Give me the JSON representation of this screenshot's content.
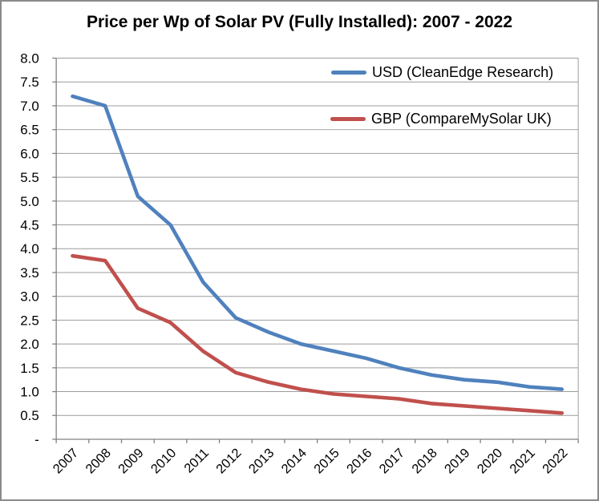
{
  "chart_data": {
    "type": "line",
    "title": "Price per Wp of Solar PV (Fully Installed): 2007 - 2022",
    "categories": [
      "2007",
      "2008",
      "2009",
      "2010",
      "2011",
      "2012",
      "2013",
      "2014",
      "2015",
      "2016",
      "2017",
      "2018",
      "2019",
      "2020",
      "2021",
      "2022"
    ],
    "series": [
      {
        "name": "USD (CleanEdge Research)",
        "key": "usd",
        "color": "#4F81BD",
        "values": [
          7.2,
          7.0,
          5.1,
          4.5,
          3.3,
          2.55,
          2.25,
          2.0,
          1.85,
          1.7,
          1.5,
          1.35,
          1.25,
          1.2,
          1.1,
          1.05
        ]
      },
      {
        "name": "GBP (CompareMySolar UK)",
        "key": "gbp",
        "color": "#C0504D",
        "values": [
          3.85,
          3.75,
          2.75,
          2.45,
          1.85,
          1.4,
          1.2,
          1.05,
          0.95,
          0.9,
          0.85,
          0.75,
          0.7,
          0.65,
          0.6,
          0.55
        ]
      }
    ],
    "xlabel": "",
    "ylabel": "",
    "ylim": [
      0,
      8
    ],
    "y_tick_step": 0.5,
    "y_tick_labels": [
      "-",
      "0.5",
      "1.0",
      "1.5",
      "2.0",
      "2.5",
      "3.0",
      "3.5",
      "4.0",
      "4.5",
      "5.0",
      "5.5",
      "6.0",
      "6.5",
      "7.0",
      "7.5",
      "8.0"
    ],
    "grid": true,
    "legend_position": "inside-top-right",
    "x_tick_label_rotation_deg": 45
  },
  "legend": [
    {
      "label": "USD (CleanEdge Research)",
      "series": "usd"
    },
    {
      "label": "GBP (CompareMySolar UK)",
      "series": "gbp"
    }
  ],
  "colors": {
    "usd_line": "#4F81BD",
    "gbp_line": "#C0504D",
    "gridline": "#9C9C9C",
    "axis": "#808080",
    "frame_border": "#8A8A8A",
    "text": "#000000",
    "background": "#FFFFFF"
  }
}
